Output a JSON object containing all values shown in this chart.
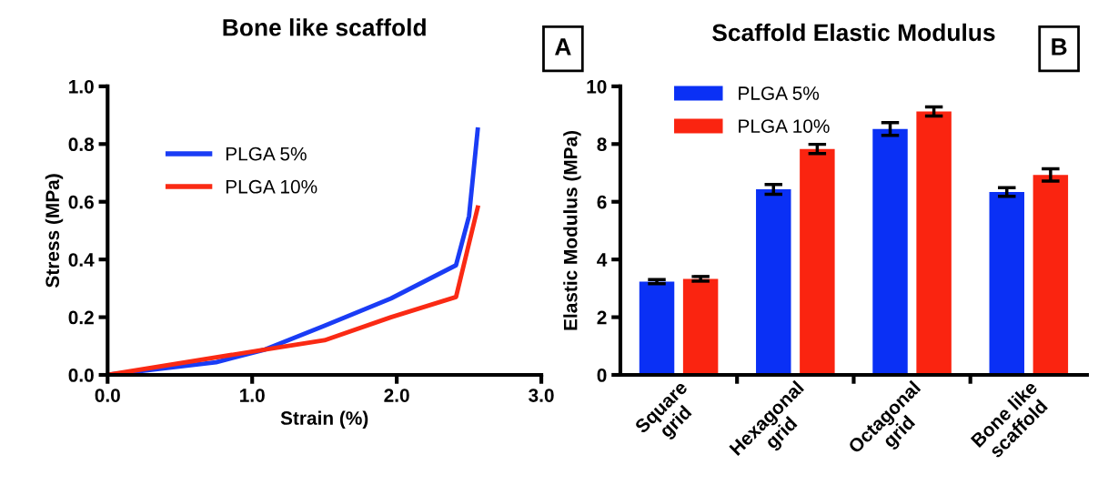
{
  "chart_data": [
    {
      "type": "line",
      "title": "Bone like scaffold",
      "xlabel": "Strain (%)",
      "ylabel": "Stress (MPa)",
      "annotations": [
        "A"
      ],
      "xlim": [
        0,
        3
      ],
      "ylim": [
        0,
        1
      ],
      "xticks": [
        {
          "value": 0,
          "label": "0.0"
        },
        {
          "value": 1,
          "label": "1.0"
        },
        {
          "value": 2,
          "label": "2.0"
        },
        {
          "value": 3,
          "label": "3.0"
        }
      ],
      "yticks": [
        {
          "value": 0,
          "label": "0.0"
        },
        {
          "value": 0.2,
          "label": "0.2"
        },
        {
          "value": 0.4,
          "label": "0.4"
        },
        {
          "value": 0.6,
          "label": "0.6"
        },
        {
          "value": 0.8,
          "label": "0.8"
        },
        {
          "value": 1,
          "label": "1.0"
        }
      ],
      "legend": "top left",
      "grid": false,
      "marker": "none",
      "line_style": "solid",
      "series": [
        {
          "name": "PLGA 5%",
          "color": "#1a3cf5",
          "x": [
            0,
            0.75,
            1.09,
            1.5,
            1.96,
            2.41,
            2.5,
            2.56
          ],
          "values": [
            0,
            0.044,
            0.088,
            0.17,
            0.265,
            0.38,
            0.55,
            0.85
          ]
        },
        {
          "name": "PLGA 10%",
          "color": "#fa2a14",
          "x": [
            0,
            1.09,
            1.5,
            1.96,
            2.41,
            2.56
          ],
          "values": [
            0,
            0.088,
            0.12,
            0.2,
            0.27,
            0.58
          ]
        }
      ]
    },
    {
      "type": "bar",
      "title": "Scaffold Elastic Modulus",
      "ylabel": "Elastic Modulus (MPa)",
      "annotations": [
        "B"
      ],
      "categories": [
        "Square\ngrid",
        "Hexagonal\ngrid",
        "Octagonal\ngrid",
        "Bone like\nscaffold"
      ],
      "ylim": [
        0,
        10
      ],
      "yticks": [
        0,
        2,
        4,
        6,
        8,
        10
      ],
      "legend": "top left",
      "grid": false,
      "series": [
        {
          "name": "PLGA 5%",
          "color": "#0a30f5",
          "values": [
            3.23,
            6.43,
            8.52,
            6.34
          ],
          "errors": [
            0.07,
            0.17,
            0.22,
            0.15
          ]
        },
        {
          "name": "PLGA 10%",
          "color": "#fa2410",
          "values": [
            3.33,
            7.83,
            9.13,
            6.93
          ],
          "errors": [
            0.08,
            0.16,
            0.16,
            0.21
          ]
        }
      ]
    }
  ]
}
